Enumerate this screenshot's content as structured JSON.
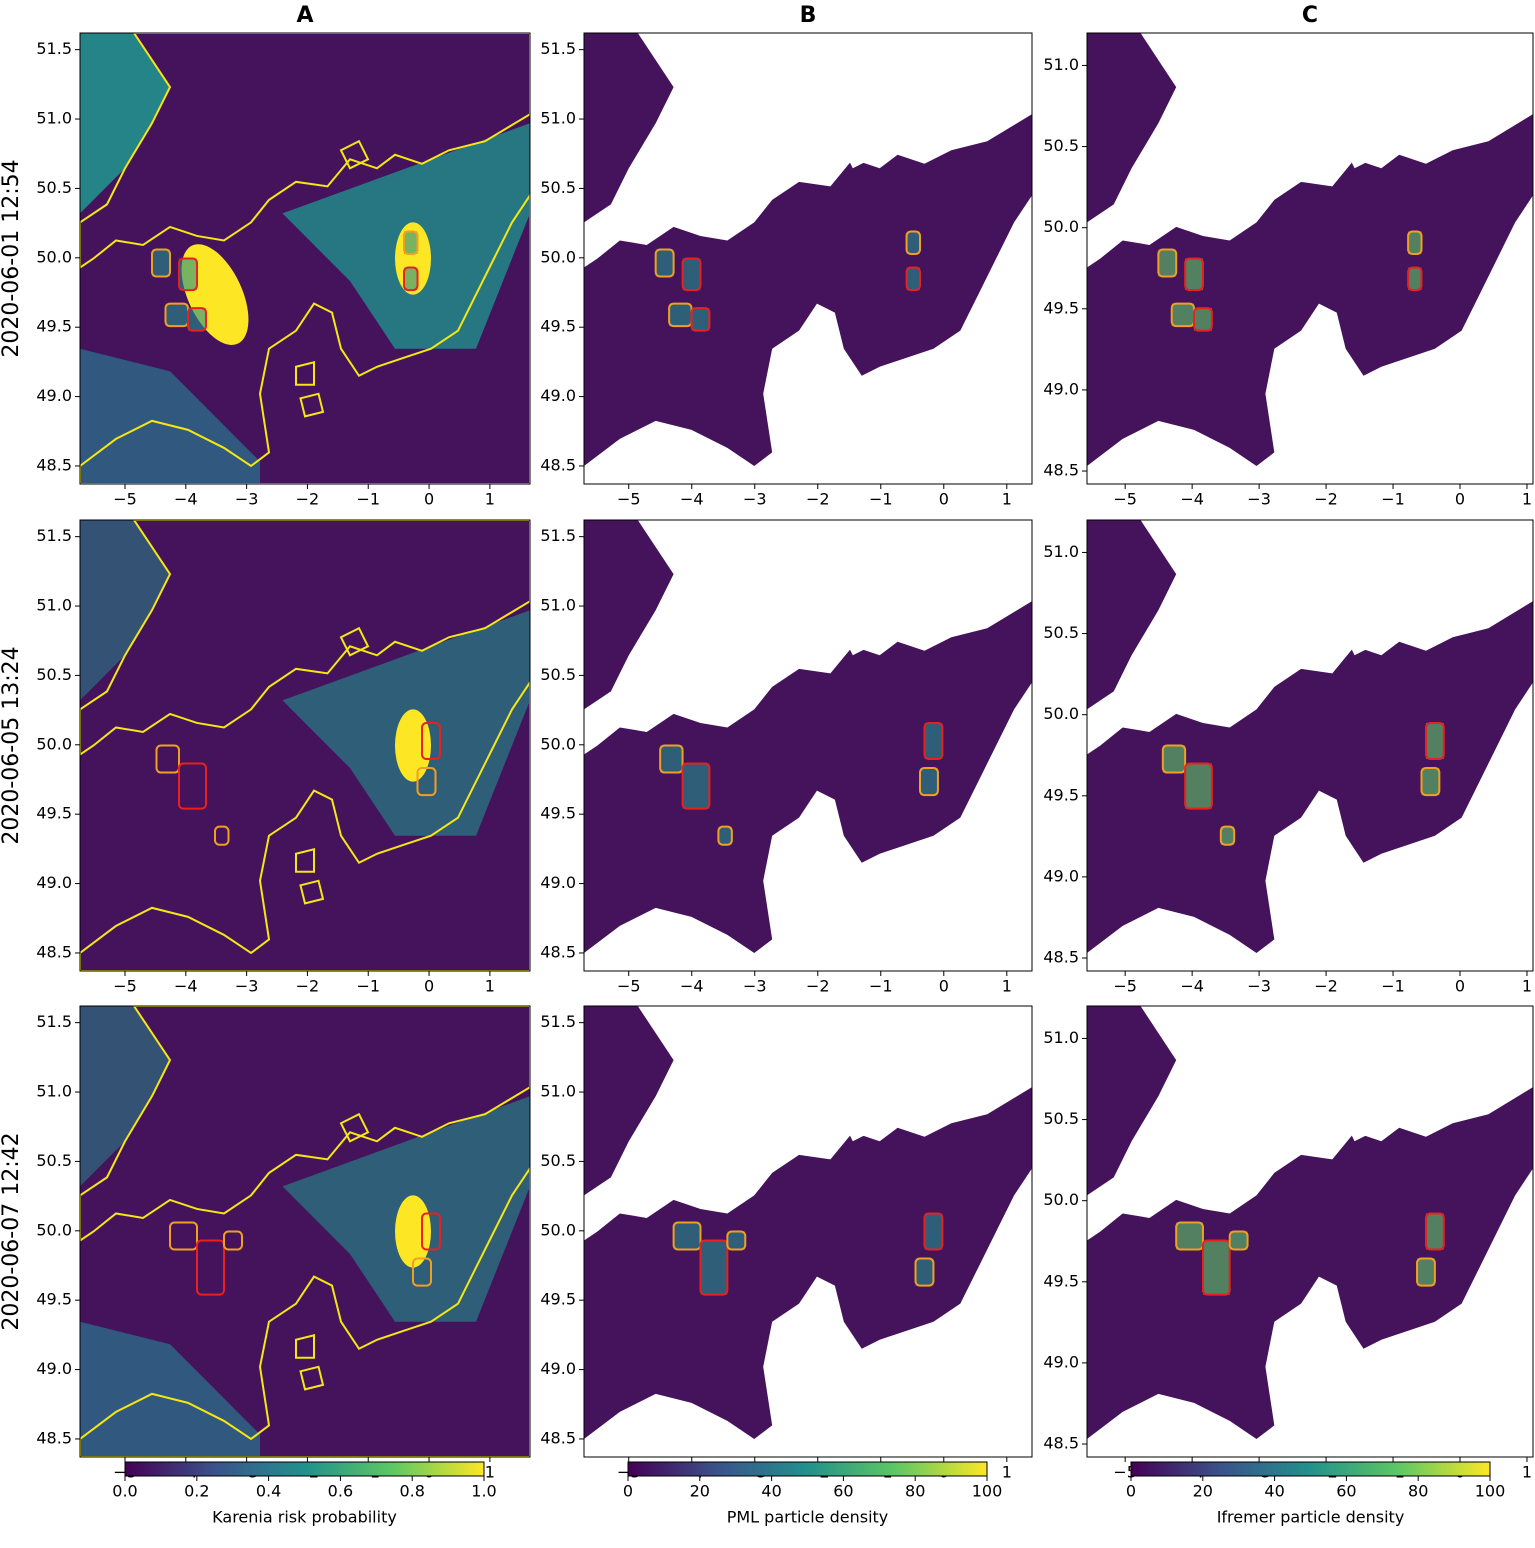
{
  "row_labels": [
    "2020-06-01 12:54",
    "2020-06-05 13:24",
    "2020-06-07 12:42"
  ],
  "chart_data": [
    {
      "type": "map",
      "title": "A",
      "xlim": [
        -5.74,
        1.66
      ],
      "ylim": [
        48.37,
        51.62
      ],
      "xticks": [
        {
          "value": -5,
          "label": "−5"
        },
        {
          "value": -4,
          "label": "−4"
        },
        {
          "value": -3,
          "label": "−3"
        },
        {
          "value": -2,
          "label": "−2"
        },
        {
          "value": -1,
          "label": "−1"
        },
        0,
        1
      ],
      "yticks": [
        48.5,
        {
          "value": 49,
          "label": "49.0"
        },
        49.5,
        {
          "value": 50,
          "label": "50.0"
        },
        50.5,
        {
          "value": 51,
          "label": "51.0"
        },
        51.5
      ],
      "colorbar": {
        "label": "Karenia risk probability",
        "lim": [
          0,
          1
        ],
        "ticks": [
          {
            "value": 0,
            "label": "0.0"
          },
          0.2,
          0.4,
          0.6,
          0.8,
          {
            "value": 1,
            "label": "1.0"
          }
        ]
      }
    },
    {
      "type": "map",
      "title": "B",
      "xlim": [
        -5.71,
        1.4
      ],
      "ylim": [
        48.37,
        51.62
      ],
      "xticks": [
        {
          "value": -5,
          "label": "−5"
        },
        {
          "value": -4,
          "label": "−4"
        },
        {
          "value": -3,
          "label": "−3"
        },
        {
          "value": -2,
          "label": "−2"
        },
        {
          "value": -1,
          "label": "−1"
        },
        0,
        1
      ],
      "yticks": [
        48.5,
        {
          "value": 49,
          "label": "49.0"
        },
        49.5,
        {
          "value": 50,
          "label": "50.0"
        },
        50.5,
        {
          "value": 51,
          "label": "51.0"
        },
        51.5
      ],
      "colorbar": {
        "label": "PML particle density",
        "lim": [
          0,
          100
        ],
        "ticks": [
          0,
          20,
          40,
          60,
          80,
          100
        ]
      }
    },
    {
      "type": "map",
      "title": "C",
      "xlim": [
        -5.57,
        1.09
      ],
      "ylim": [
        48.42,
        51.2
      ],
      "xticks": [
        {
          "value": -5,
          "label": "−5"
        },
        {
          "value": -4,
          "label": "−4"
        },
        {
          "value": -3,
          "label": "−3"
        },
        {
          "value": -2,
          "label": "−2"
        },
        {
          "value": -1,
          "label": "−1"
        },
        0,
        1
      ],
      "yticks": [
        48.5,
        {
          "value": 49,
          "label": "49.0"
        },
        49.5,
        {
          "value": 50,
          "label": "50.0"
        },
        50.5,
        {
          "value": 51,
          "label": "51.0"
        }
      ],
      "colorbar": {
        "label": "Ifremer particle density",
        "lim": [
          0,
          100
        ],
        "ticks": [
          0,
          20,
          40,
          60,
          80,
          100
        ]
      }
    }
  ]
}
